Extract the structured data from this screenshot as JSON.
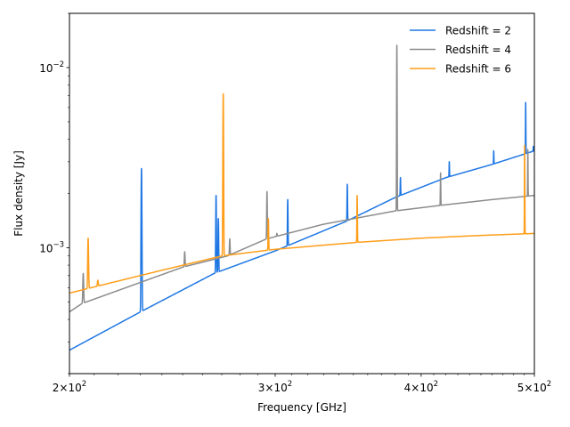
{
  "chart_data": {
    "type": "line",
    "xlabel": "Frequency [GHz]",
    "ylabel": "Flux density [Jy]",
    "xscale": "log",
    "yscale": "log",
    "xlim": [
      200,
      500
    ],
    "ylim": [
      0.0002,
      0.02
    ],
    "grid": false,
    "legend": {
      "placement": "top-right",
      "frame": false
    },
    "x_ticks": [
      {
        "value": 200,
        "base": "2",
        "exp": "2"
      },
      {
        "value": 300,
        "base": "3",
        "exp": "2"
      },
      {
        "value": 400,
        "base": "4",
        "exp": "2"
      },
      {
        "value": 500,
        "base": "5",
        "exp": "2"
      }
    ],
    "y_ticks": [
      {
        "value": 0.001,
        "base": "10",
        "exp": "−3"
      },
      {
        "value": 0.01,
        "base": "10",
        "exp": "−2"
      }
    ],
    "series": [
      {
        "name": "Redshift = 2",
        "color": "#1f77e4",
        "continuum": [
          [
            200,
            0.00027
          ],
          [
            230,
            0.00044
          ],
          [
            266,
            0.00072
          ],
          [
            300,
            0.00096
          ],
          [
            345,
            0.0014
          ],
          [
            380,
            0.0019
          ],
          [
            420,
            0.00245
          ],
          [
            460,
            0.0029
          ],
          [
            500,
            0.00345
          ]
        ],
        "lines": [
          {
            "x": 230.5,
            "peak": 0.00275
          },
          {
            "x": 267.0,
            "peak": 0.00195
          },
          {
            "x": 268.2,
            "peak": 0.00145
          },
          {
            "x": 307.5,
            "peak": 0.00185
          },
          {
            "x": 345.8,
            "peak": 0.00225
          },
          {
            "x": 384.0,
            "peak": 0.00245
          },
          {
            "x": 422.8,
            "peak": 0.003
          },
          {
            "x": 461.5,
            "peak": 0.00345
          },
          {
            "x": 491.5,
            "peak": 0.0064
          },
          {
            "x": 499.0,
            "peak": 0.00365
          }
        ]
      },
      {
        "name": "Redshift = 4",
        "color": "#8c8c8c",
        "continuum": [
          [
            200,
            0.00044
          ],
          [
            205,
            0.00049
          ],
          [
            250,
            0.00078
          ],
          [
            273,
            0.0009
          ],
          [
            295,
            0.00112
          ],
          [
            330,
            0.00135
          ],
          [
            380,
            0.0016
          ],
          [
            416,
            0.00172
          ],
          [
            460,
            0.00185
          ],
          [
            500,
            0.00195
          ]
        ],
        "lines": [
          {
            "x": 205.5,
            "peak": 0.00072
          },
          {
            "x": 251.0,
            "peak": 0.00095
          },
          {
            "x": 274.3,
            "peak": 0.00112
          },
          {
            "x": 295.2,
            "peak": 0.00205
          },
          {
            "x": 301.0,
            "peak": 0.0012
          },
          {
            "x": 381.3,
            "peak": 0.0133
          },
          {
            "x": 415.6,
            "peak": 0.0026
          },
          {
            "x": 493.6,
            "peak": 0.0035
          }
        ]
      },
      {
        "name": "Redshift = 6",
        "color": "#ff9e1a",
        "continuum": [
          [
            200,
            0.00056
          ],
          [
            240,
            0.00075
          ],
          [
            270,
            0.0009
          ],
          [
            300,
            0.00098
          ],
          [
            352,
            0.00107
          ],
          [
            400,
            0.00113
          ],
          [
            450,
            0.00117
          ],
          [
            500,
            0.0012
          ]
        ],
        "lines": [
          {
            "x": 207.5,
            "peak": 0.00113
          },
          {
            "x": 211.5,
            "peak": 0.00066
          },
          {
            "x": 270.8,
            "peak": 0.00715
          },
          {
            "x": 296.0,
            "peak": 0.00145
          },
          {
            "x": 352.6,
            "peak": 0.00195
          },
          {
            "x": 490.5,
            "peak": 0.0037
          }
        ]
      }
    ]
  }
}
